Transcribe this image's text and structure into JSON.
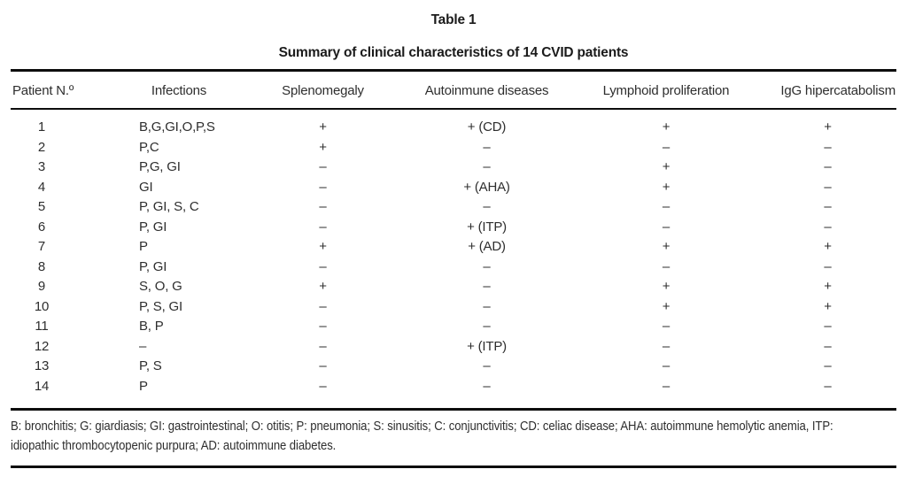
{
  "page": {
    "title": "Table 1",
    "subtitle": "Summary of clinical characteristics of 14 CVID patients"
  },
  "colors": {
    "rule": "#0d0d0d",
    "text": "#2e2e2e",
    "background": "#ffffff"
  },
  "table": {
    "columns": [
      "Patient N.º",
      "Infections",
      "Splenomegaly",
      "Autoinmune diseases",
      "Lymphoid proliferation",
      "IgG hipercatabolism"
    ],
    "rows": [
      {
        "patient": "1",
        "infections": "B,G,GI,O,P,S",
        "splenomegaly": "+",
        "autoimmune": "+ (CD)",
        "lymphoid": "+",
        "igg": "+"
      },
      {
        "patient": "2",
        "infections": "P,C",
        "splenomegaly": "+",
        "autoimmune": "–",
        "lymphoid": "–",
        "igg": "–"
      },
      {
        "patient": "3",
        "infections": "P,G, GI",
        "splenomegaly": "–",
        "autoimmune": "–",
        "lymphoid": "+",
        "igg": "–"
      },
      {
        "patient": "4",
        "infections": "GI",
        "splenomegaly": "–",
        "autoimmune": "+ (AHA)",
        "lymphoid": "+",
        "igg": "–"
      },
      {
        "patient": "5",
        "infections": "P, GI, S, C",
        "splenomegaly": "–",
        "autoimmune": "–",
        "lymphoid": "–",
        "igg": "–"
      },
      {
        "patient": "6",
        "infections": "P, GI",
        "splenomegaly": "–",
        "autoimmune": "+ (ITP)",
        "lymphoid": "–",
        "igg": "–"
      },
      {
        "patient": "7",
        "infections": "P",
        "splenomegaly": "+",
        "autoimmune": "+ (AD)",
        "lymphoid": "+",
        "igg": "+"
      },
      {
        "patient": "8",
        "infections": "P, GI",
        "splenomegaly": "–",
        "autoimmune": "–",
        "lymphoid": "–",
        "igg": "–"
      },
      {
        "patient": "9",
        "infections": "S, O, G",
        "splenomegaly": "+",
        "autoimmune": "–",
        "lymphoid": "+",
        "igg": "+"
      },
      {
        "patient": "10",
        "infections": "P, S, GI",
        "splenomegaly": "–",
        "autoimmune": "–",
        "lymphoid": "+",
        "igg": "+"
      },
      {
        "patient": "11",
        "infections": "B, P",
        "splenomegaly": "–",
        "autoimmune": "–",
        "lymphoid": "–",
        "igg": "–"
      },
      {
        "patient": "12",
        "infections": "–",
        "splenomegaly": "–",
        "autoimmune": "+ (ITP)",
        "lymphoid": "–",
        "igg": "–"
      },
      {
        "patient": "13",
        "infections": "P, S",
        "splenomegaly": "–",
        "autoimmune": "–",
        "lymphoid": "–",
        "igg": "–"
      },
      {
        "patient": "14",
        "infections": "P",
        "splenomegaly": "–",
        "autoimmune": "–",
        "lymphoid": "–",
        "igg": "–"
      }
    ],
    "footnote_lines": [
      "B: bronchitis; G: giardiasis; GI: gastrointestinal; O: otitis; P: pneumonia; S: sinusitis; C: conjunctivitis; CD: celiac disease; AHA: autoimmune hemolytic anemia, ITP:",
      "idiopathic thrombocytopenic purpura; AD: autoimmune diabetes."
    ]
  }
}
